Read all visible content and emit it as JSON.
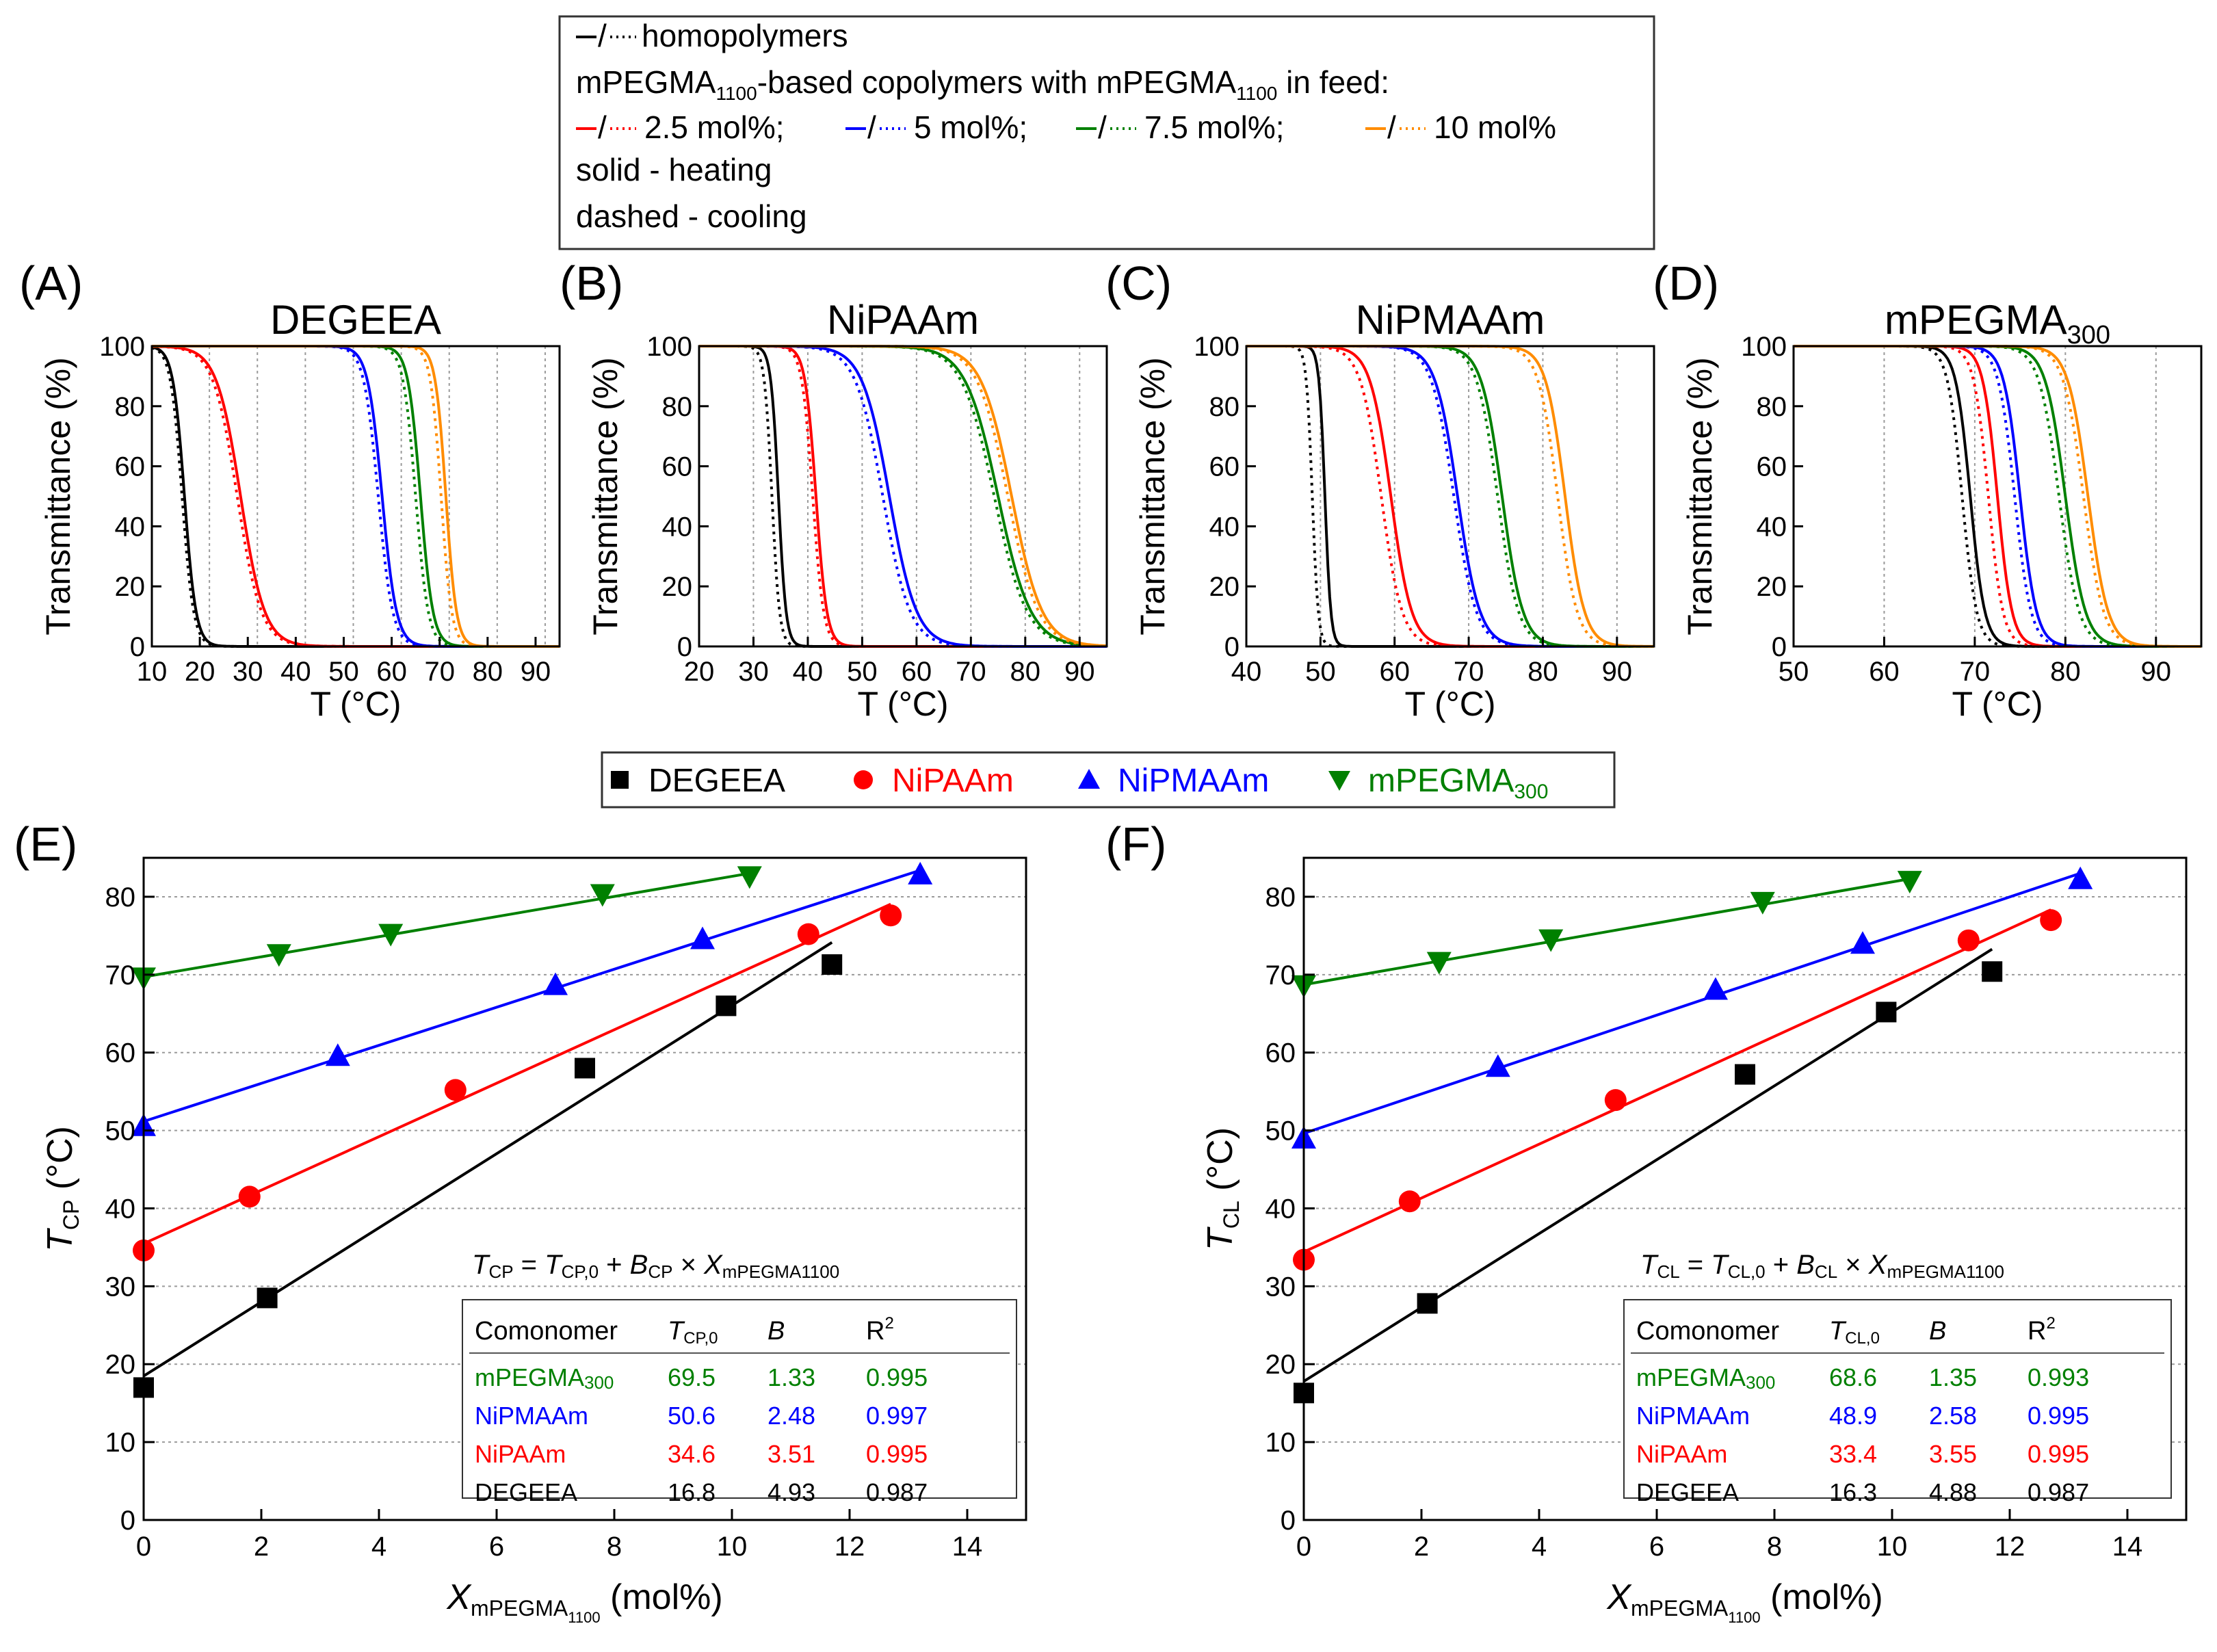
{
  "legend_top": {
    "line1": "homopolymers",
    "line2_main": "mPEGMA",
    "line2_sub1": "1100",
    "line2_mid": "-based copolymers with mPEGMA",
    "line2_sub2": "1100",
    "line2_end": " in feed:",
    "entries": [
      "2.5 mol%;",
      "5 mol%;",
      "7.5 mol%;",
      "10 mol%"
    ],
    "line4": "solid - heating",
    "line5": "dashed - cooling"
  },
  "legend_mid": {
    "entries": [
      {
        "label": "DEGEEA",
        "sub": ""
      },
      {
        "label": "NiPAAm",
        "sub": ""
      },
      {
        "label": "NiPMAAm",
        "sub": ""
      },
      {
        "label": "mPEGMA",
        "sub": "300"
      }
    ]
  },
  "colors": {
    "black": "#000000",
    "red": "#ff0000",
    "blue": "#0000ff",
    "green": "#008000",
    "orange": "#ff8c00",
    "grid": "#9a9a9a"
  },
  "chart_data": [
    {
      "panel": "(A)",
      "type": "line",
      "title": "DEGEEA",
      "title_sub": "",
      "xlabel": "T (°C)",
      "ylabel": "Transmittance (%)",
      "xlim": [
        10,
        95
      ],
      "ylim": [
        0,
        100
      ],
      "xticks": [
        10,
        20,
        30,
        40,
        50,
        60,
        70,
        80,
        90
      ],
      "yticks": [
        0,
        20,
        40,
        60,
        80,
        100
      ],
      "vgrid": [
        22,
        32,
        42,
        52,
        62,
        72,
        82,
        92
      ],
      "series": [
        {
          "name": "homopolymer",
          "color": "black",
          "Th": 16.8,
          "Tc": 16.3,
          "w": 1.2
        },
        {
          "name": "2.5 mol%",
          "color": "red",
          "Th": 28.5,
          "Tc": 27.8,
          "w": 2.5
        },
        {
          "name": "5 mol%",
          "color": "blue",
          "Th": 58.0,
          "Tc": 57.2,
          "w": 1.5
        },
        {
          "name": "7.5 mol%",
          "color": "green",
          "Th": 66.0,
          "Tc": 65.0,
          "w": 1.3
        },
        {
          "name": "10 mol%",
          "color": "orange",
          "Th": 71.3,
          "Tc": 70.3,
          "w": 1.1
        }
      ]
    },
    {
      "panel": "(B)",
      "type": "line",
      "title": "NiPAAm",
      "title_sub": "",
      "xlabel": "T (°C)",
      "ylabel": "Transmittance (%)",
      "xlim": [
        20,
        95
      ],
      "ylim": [
        0,
        100
      ],
      "xticks": [
        20,
        30,
        40,
        50,
        60,
        70,
        80,
        90
      ],
      "yticks": [
        0,
        20,
        40,
        60,
        80,
        100
      ],
      "vgrid": [
        30,
        40,
        50,
        60,
        70,
        80,
        90
      ],
      "series": [
        {
          "name": "homopolymer",
          "color": "black",
          "Th": 34.6,
          "Tc": 33.4,
          "w": 0.7
        },
        {
          "name": "2.5 mol%",
          "color": "red",
          "Th": 41.5,
          "Tc": 40.9,
          "w": 1.0
        },
        {
          "name": "5 mol%",
          "color": "blue",
          "Th": 55.0,
          "Tc": 53.8,
          "w": 2.5
        },
        {
          "name": "7.5 mol%",
          "color": "green",
          "Th": 75.0,
          "Tc": 74.3,
          "w": 3.0
        },
        {
          "name": "10 mol%",
          "color": "orange",
          "Th": 77.5,
          "Tc": 76.8,
          "w": 2.8
        }
      ]
    },
    {
      "panel": "(C)",
      "type": "line",
      "title": "NiPMAAm",
      "title_sub": "",
      "xlabel": "T (°C)",
      "ylabel": "Transmittance (%)",
      "xlim": [
        40,
        95
      ],
      "ylim": [
        0,
        100
      ],
      "xticks": [
        40,
        50,
        60,
        70,
        80,
        90
      ],
      "yticks": [
        0,
        20,
        40,
        60,
        80,
        100
      ],
      "vgrid": [
        50,
        60,
        70,
        80,
        90
      ],
      "series": [
        {
          "name": "homopolymer",
          "color": "black",
          "Th": 50.6,
          "Tc": 48.9,
          "w": 0.4
        },
        {
          "name": "2.5 mol%",
          "color": "red",
          "Th": 59.5,
          "Tc": 58.2,
          "w": 1.4
        },
        {
          "name": "5 mol%",
          "color": "blue",
          "Th": 68.5,
          "Tc": 68.0,
          "w": 1.5
        },
        {
          "name": "7.5 mol%",
          "color": "green",
          "Th": 74.5,
          "Tc": 73.9,
          "w": 1.4
        },
        {
          "name": "10 mol%",
          "color": "orange",
          "Th": 83.0,
          "Tc": 82.0,
          "w": 1.3
        }
      ]
    },
    {
      "panel": "(D)",
      "type": "line",
      "title": "mPEGMA",
      "title_sub": "300",
      "xlabel": "T (°C)",
      "ylabel": "Transmittance (%)",
      "xlim": [
        50,
        95
      ],
      "ylim": [
        0,
        100
      ],
      "xticks": [
        50,
        60,
        70,
        80,
        90
      ],
      "yticks": [
        0,
        20,
        40,
        60,
        80,
        100
      ],
      "vgrid": [
        60,
        70,
        80,
        90
      ],
      "series": [
        {
          "name": "homopolymer",
          "color": "black",
          "Th": 69.5,
          "Tc": 68.6,
          "w": 0.8
        },
        {
          "name": "2.5 mol%",
          "color": "red",
          "Th": 72.5,
          "Tc": 71.5,
          "w": 0.8
        },
        {
          "name": "5 mol%",
          "color": "blue",
          "Th": 75.0,
          "Tc": 74.4,
          "w": 0.9
        },
        {
          "name": "7.5 mol%",
          "color": "green",
          "Th": 80.0,
          "Tc": 79.3,
          "w": 1.1
        },
        {
          "name": "10 mol%",
          "color": "orange",
          "Th": 82.5,
          "Tc": 82.0,
          "w": 1.1
        }
      ]
    },
    {
      "panel": "(E)",
      "type": "scatter",
      "ylabel_main": "T",
      "ylabel_sub": "CP",
      "ylabel_tail": " (°C)",
      "xlabel_main": "X",
      "xlabel_sub": "mPEGMA",
      "xlabel_subsub": "1100",
      "xlabel_tail": " (mol%)",
      "xlim": [
        0,
        15
      ],
      "ylim": [
        0,
        85
      ],
      "xticks": [
        0,
        2,
        4,
        6,
        8,
        10,
        12,
        14
      ],
      "yticks": [
        0,
        10,
        20,
        30,
        40,
        50,
        60,
        70,
        80
      ],
      "equation": "TCP = TCP,0 + BCP × XmPEGMA1100",
      "eq_parts": {
        "t": "T",
        "tsub": "CP",
        "eq": " = ",
        "t0": "T",
        "t0sub": "CP,0",
        "plus": " + ",
        "b": "B",
        "bsub": "CP",
        "times": " × ",
        "x": "X",
        "xsub": "mPEGMA1100"
      },
      "table": {
        "headers": [
          "Comonomer",
          "T",
          "CP,0",
          "B",
          "R",
          "2"
        ],
        "rows": [
          {
            "name": "mPEGMA",
            "sub": "300",
            "t0": "69.5",
            "b": "1.33",
            "r2": "0.995",
            "color": "green"
          },
          {
            "name": "NiPMAAm",
            "sub": "",
            "t0": "50.6",
            "b": "2.48",
            "r2": "0.997",
            "color": "blue"
          },
          {
            "name": "NiPAAm",
            "sub": "",
            "t0": "34.6",
            "b": "3.51",
            "r2": "0.995",
            "color": "red"
          },
          {
            "name": "DEGEEA",
            "sub": "",
            "t0": "16.8",
            "b": "4.93",
            "r2": "0.987",
            "color": "black"
          }
        ]
      },
      "series": [
        {
          "name": "DEGEEA",
          "color": "black",
          "marker": "square",
          "x": [
            0,
            2.1,
            7.5,
            9.9,
            11.7
          ],
          "y": [
            17.0,
            28.5,
            58.0,
            66.0,
            71.3
          ],
          "fit": [
            0,
            11.7
          ]
        },
        {
          "name": "NiPAAm",
          "color": "red",
          "marker": "circle",
          "x": [
            0,
            1.8,
            5.3,
            11.3,
            12.7
          ],
          "y": [
            34.6,
            41.5,
            55.2,
            75.2,
            77.6
          ],
          "fit": [
            0,
            12.7
          ]
        },
        {
          "name": "NiPMAAm",
          "color": "blue",
          "marker": "triangle-up",
          "x": [
            0,
            3.3,
            7.0,
            9.5,
            13.2
          ],
          "y": [
            50.6,
            59.6,
            68.7,
            74.6,
            82.9
          ],
          "fit": [
            0,
            13.2
          ]
        },
        {
          "name": "mPEGMA300",
          "color": "green",
          "marker": "triangle-down",
          "x": [
            0,
            2.3,
            4.2,
            7.8,
            10.3
          ],
          "y": [
            69.6,
            72.6,
            75.2,
            80.3,
            82.6
          ],
          "fit": [
            0,
            10.3
          ]
        }
      ]
    },
    {
      "panel": "(F)",
      "type": "scatter",
      "ylabel_main": "T",
      "ylabel_sub": "CL",
      "ylabel_tail": " (°C)",
      "xlabel_main": "X",
      "xlabel_sub": "mPEGMA",
      "xlabel_subsub": "1100",
      "xlabel_tail": " (mol%)",
      "xlim": [
        0,
        15
      ],
      "ylim": [
        0,
        85
      ],
      "xticks": [
        0,
        2,
        4,
        6,
        8,
        10,
        12,
        14
      ],
      "yticks": [
        0,
        10,
        20,
        30,
        40,
        50,
        60,
        70,
        80
      ],
      "equation": "TCL = TCL,0 + BCL × XmPEGMA1100",
      "eq_parts": {
        "t": "T",
        "tsub": "CL",
        "eq": " = ",
        "t0": "T",
        "t0sub": "CL,0",
        "plus": " + ",
        "b": "B",
        "bsub": "CL",
        "times": " × ",
        "x": "X",
        "xsub": "mPEGMA1100"
      },
      "table": {
        "headers": [
          "Comonomer",
          "T",
          "CL,0",
          "B",
          "R",
          "2"
        ],
        "rows": [
          {
            "name": "mPEGMA",
            "sub": "300",
            "t0": "68.6",
            "b": "1.35",
            "r2": "0.993",
            "color": "green"
          },
          {
            "name": "NiPMAAm",
            "sub": "",
            "t0": "48.9",
            "b": "2.58",
            "r2": "0.995",
            "color": "blue"
          },
          {
            "name": "NiPAAm",
            "sub": "",
            "t0": "33.4",
            "b": "3.55",
            "r2": "0.995",
            "color": "red"
          },
          {
            "name": "DEGEEA",
            "sub": "",
            "t0": "16.3",
            "b": "4.88",
            "r2": "0.987",
            "color": "black"
          }
        ]
      },
      "series": [
        {
          "name": "DEGEEA",
          "color": "black",
          "marker": "square",
          "x": [
            0,
            2.1,
            7.5,
            9.9,
            11.7
          ],
          "y": [
            16.3,
            27.8,
            57.2,
            65.2,
            70.4
          ],
          "fit": [
            0,
            11.7
          ]
        },
        {
          "name": "NiPAAm",
          "color": "red",
          "marker": "circle",
          "x": [
            0,
            1.8,
            5.3,
            11.3,
            12.7
          ],
          "y": [
            33.4,
            40.9,
            53.9,
            74.4,
            77.0
          ],
          "fit": [
            0,
            12.7
          ]
        },
        {
          "name": "NiPMAAm",
          "color": "blue",
          "marker": "triangle-up",
          "x": [
            0,
            3.3,
            7.0,
            9.5,
            13.2
          ],
          "y": [
            49.0,
            58.2,
            68.1,
            74.0,
            82.3
          ],
          "fit": [
            0,
            13.2
          ]
        },
        {
          "name": "mPEGMA300",
          "color": "green",
          "marker": "triangle-down",
          "x": [
            0,
            2.3,
            4.2,
            7.8,
            10.3
          ],
          "y": [
            68.6,
            71.6,
            74.5,
            79.3,
            82.0
          ],
          "fit": [
            0,
            10.3
          ]
        }
      ]
    }
  ]
}
